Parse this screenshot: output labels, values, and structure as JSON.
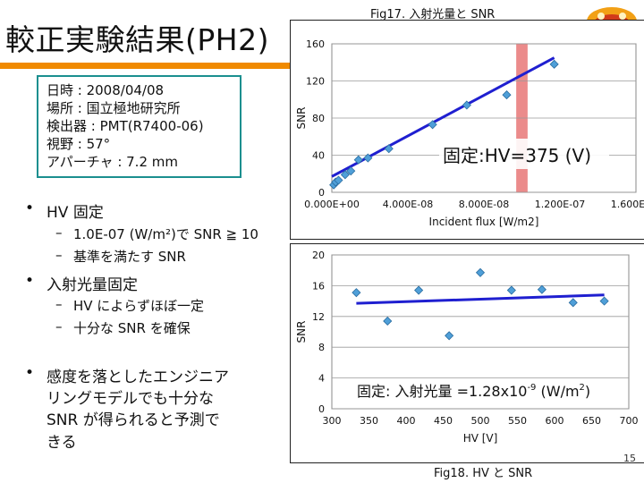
{
  "slide": {
    "title": "較正実験結果(PH2)",
    "page_number": "15",
    "info_box": [
      "日時 : 2008/04/08",
      "場所 : 国立極地研究所",
      "検出器 : PMT(R7400-06)",
      "視野 : 57°",
      "アパーチャ : 7.2 mm"
    ],
    "bullets": [
      {
        "level": 1,
        "marker": "•",
        "text": "HV 固定"
      },
      {
        "level": 2,
        "marker": "–",
        "text": "1.0E-07 (W/m²)で SNR ≧ 10"
      },
      {
        "level": 2,
        "marker": "–",
        "text": "基準を満たす SNR"
      },
      {
        "level": 1,
        "marker": "•",
        "text": "入射光量固定"
      },
      {
        "level": 2,
        "marker": "–",
        "text": "HV によらずほぼ一定"
      },
      {
        "level": 2,
        "marker": "–",
        "text": "十分な SNR を確保"
      },
      {
        "level": 1,
        "marker": "•",
        "text": "感度を落としたエンジニア"
      },
      {
        "level": 0,
        "marker": "",
        "text": "リングモデルでも十分な"
      },
      {
        "level": 0,
        "marker": "",
        "text": "SNR が得られると予測で"
      },
      {
        "level": 0,
        "marker": "",
        "text": "きる"
      }
    ]
  },
  "chart_data": [
    {
      "type": "scatter",
      "caption": "Fig17. 入射光量と SNR",
      "xlabel": "Incident flux [W/m2]",
      "ylabel": "SNR",
      "xlim": [
        0,
        1.6e-07
      ],
      "ylim": [
        0,
        160
      ],
      "x_ticks": [
        0,
        4e-08,
        8e-08,
        1.2e-07,
        1.6e-07
      ],
      "x_tick_labels": [
        "0.000E+00",
        "4.000E-08",
        "8.000E-08",
        "1.200E-07",
        "1.600E-07"
      ],
      "y_ticks": [
        0,
        40,
        80,
        120,
        160
      ],
      "grid": true,
      "annotation": "固定:HV=375 (V)",
      "marker_color": "#4f9fd8",
      "trend_color": "#1f1fd0",
      "highlight_color": "#e77777",
      "highlight_band": [
        9.7e-08,
        1.03e-07
      ],
      "points": [
        {
          "x": 1e-09,
          "y": 8
        },
        {
          "x": 2e-09,
          "y": 11
        },
        {
          "x": 3.5e-09,
          "y": 13
        },
        {
          "x": 7e-09,
          "y": 19
        },
        {
          "x": 1e-08,
          "y": 23
        },
        {
          "x": 1.4e-08,
          "y": 35
        },
        {
          "x": 1.9e-08,
          "y": 37
        },
        {
          "x": 3e-08,
          "y": 47
        },
        {
          "x": 5.3e-08,
          "y": 73
        },
        {
          "x": 7.1e-08,
          "y": 94
        },
        {
          "x": 9.2e-08,
          "y": 105
        },
        {
          "x": 1.17e-07,
          "y": 138
        }
      ],
      "trendline": [
        {
          "x": 0,
          "y": 17
        },
        {
          "x": 1.17e-07,
          "y": 145
        }
      ]
    },
    {
      "type": "scatter",
      "caption": "Fig18. HV と SNR",
      "xlabel": "HV [V]",
      "ylabel": "SNR",
      "xlim": [
        300,
        700
      ],
      "ylim": [
        0,
        20
      ],
      "x_ticks": [
        300,
        350,
        400,
        450,
        500,
        550,
        600,
        650,
        700
      ],
      "y_ticks": [
        0,
        4,
        8,
        12,
        16,
        20
      ],
      "grid": true,
      "annotation_prefix": "固定: 入射光量 =1.28x10",
      "annotation_sup": "-9",
      "annotation_suffix": " (W/m",
      "annotation_sup2": "2",
      "annotation_close": ")",
      "marker_color": "#4f9fd8",
      "trend_color": "#1f1fd0",
      "points": [
        {
          "x": 333,
          "y": 15.1
        },
        {
          "x": 375,
          "y": 11.4
        },
        {
          "x": 417,
          "y": 15.4
        },
        {
          "x": 458,
          "y": 9.5
        },
        {
          "x": 500,
          "y": 17.7
        },
        {
          "x": 542,
          "y": 15.4
        },
        {
          "x": 583,
          "y": 15.5
        },
        {
          "x": 625,
          "y": 13.8
        },
        {
          "x": 667,
          "y": 14.0
        }
      ],
      "trendline": [
        {
          "x": 333,
          "y": 13.7
        },
        {
          "x": 667,
          "y": 14.8
        }
      ]
    }
  ]
}
